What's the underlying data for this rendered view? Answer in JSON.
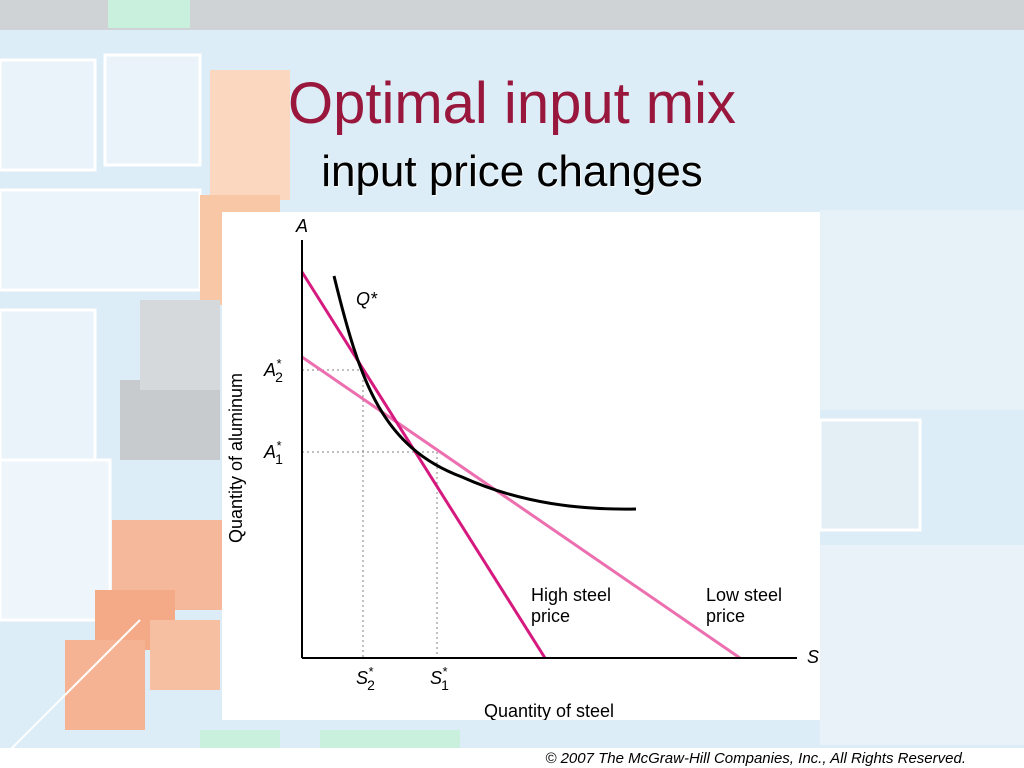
{
  "slide": {
    "title": "Optimal input mix",
    "subtitle": "input price changes",
    "copyright": "© 2007 The McGraw-Hill Companies, Inc., All Rights Reserved."
  },
  "diagram": {
    "y_axis_letter": "A",
    "x_axis_letter": "S",
    "y_axis_label": "Quantity of aluminum",
    "x_axis_label": "Quantity of steel",
    "isoquant_label": "Q*",
    "a2_label": {
      "base": "A",
      "star": "*",
      "sub": "2"
    },
    "a1_label": {
      "base": "A",
      "star": "*",
      "sub": "1"
    },
    "s2_label": {
      "base": "S",
      "star": "*",
      "sub": "2"
    },
    "s1_label": {
      "base": "S",
      "star": "*",
      "sub": "1"
    },
    "high_price_label": [
      "High steel",
      "price"
    ],
    "low_price_label": [
      "Low steel",
      "price"
    ],
    "colors": {
      "high_price_line": "#d6197e",
      "low_price_line": "#ec6faf",
      "isoquant": "#000000",
      "title": "#99173c"
    }
  }
}
